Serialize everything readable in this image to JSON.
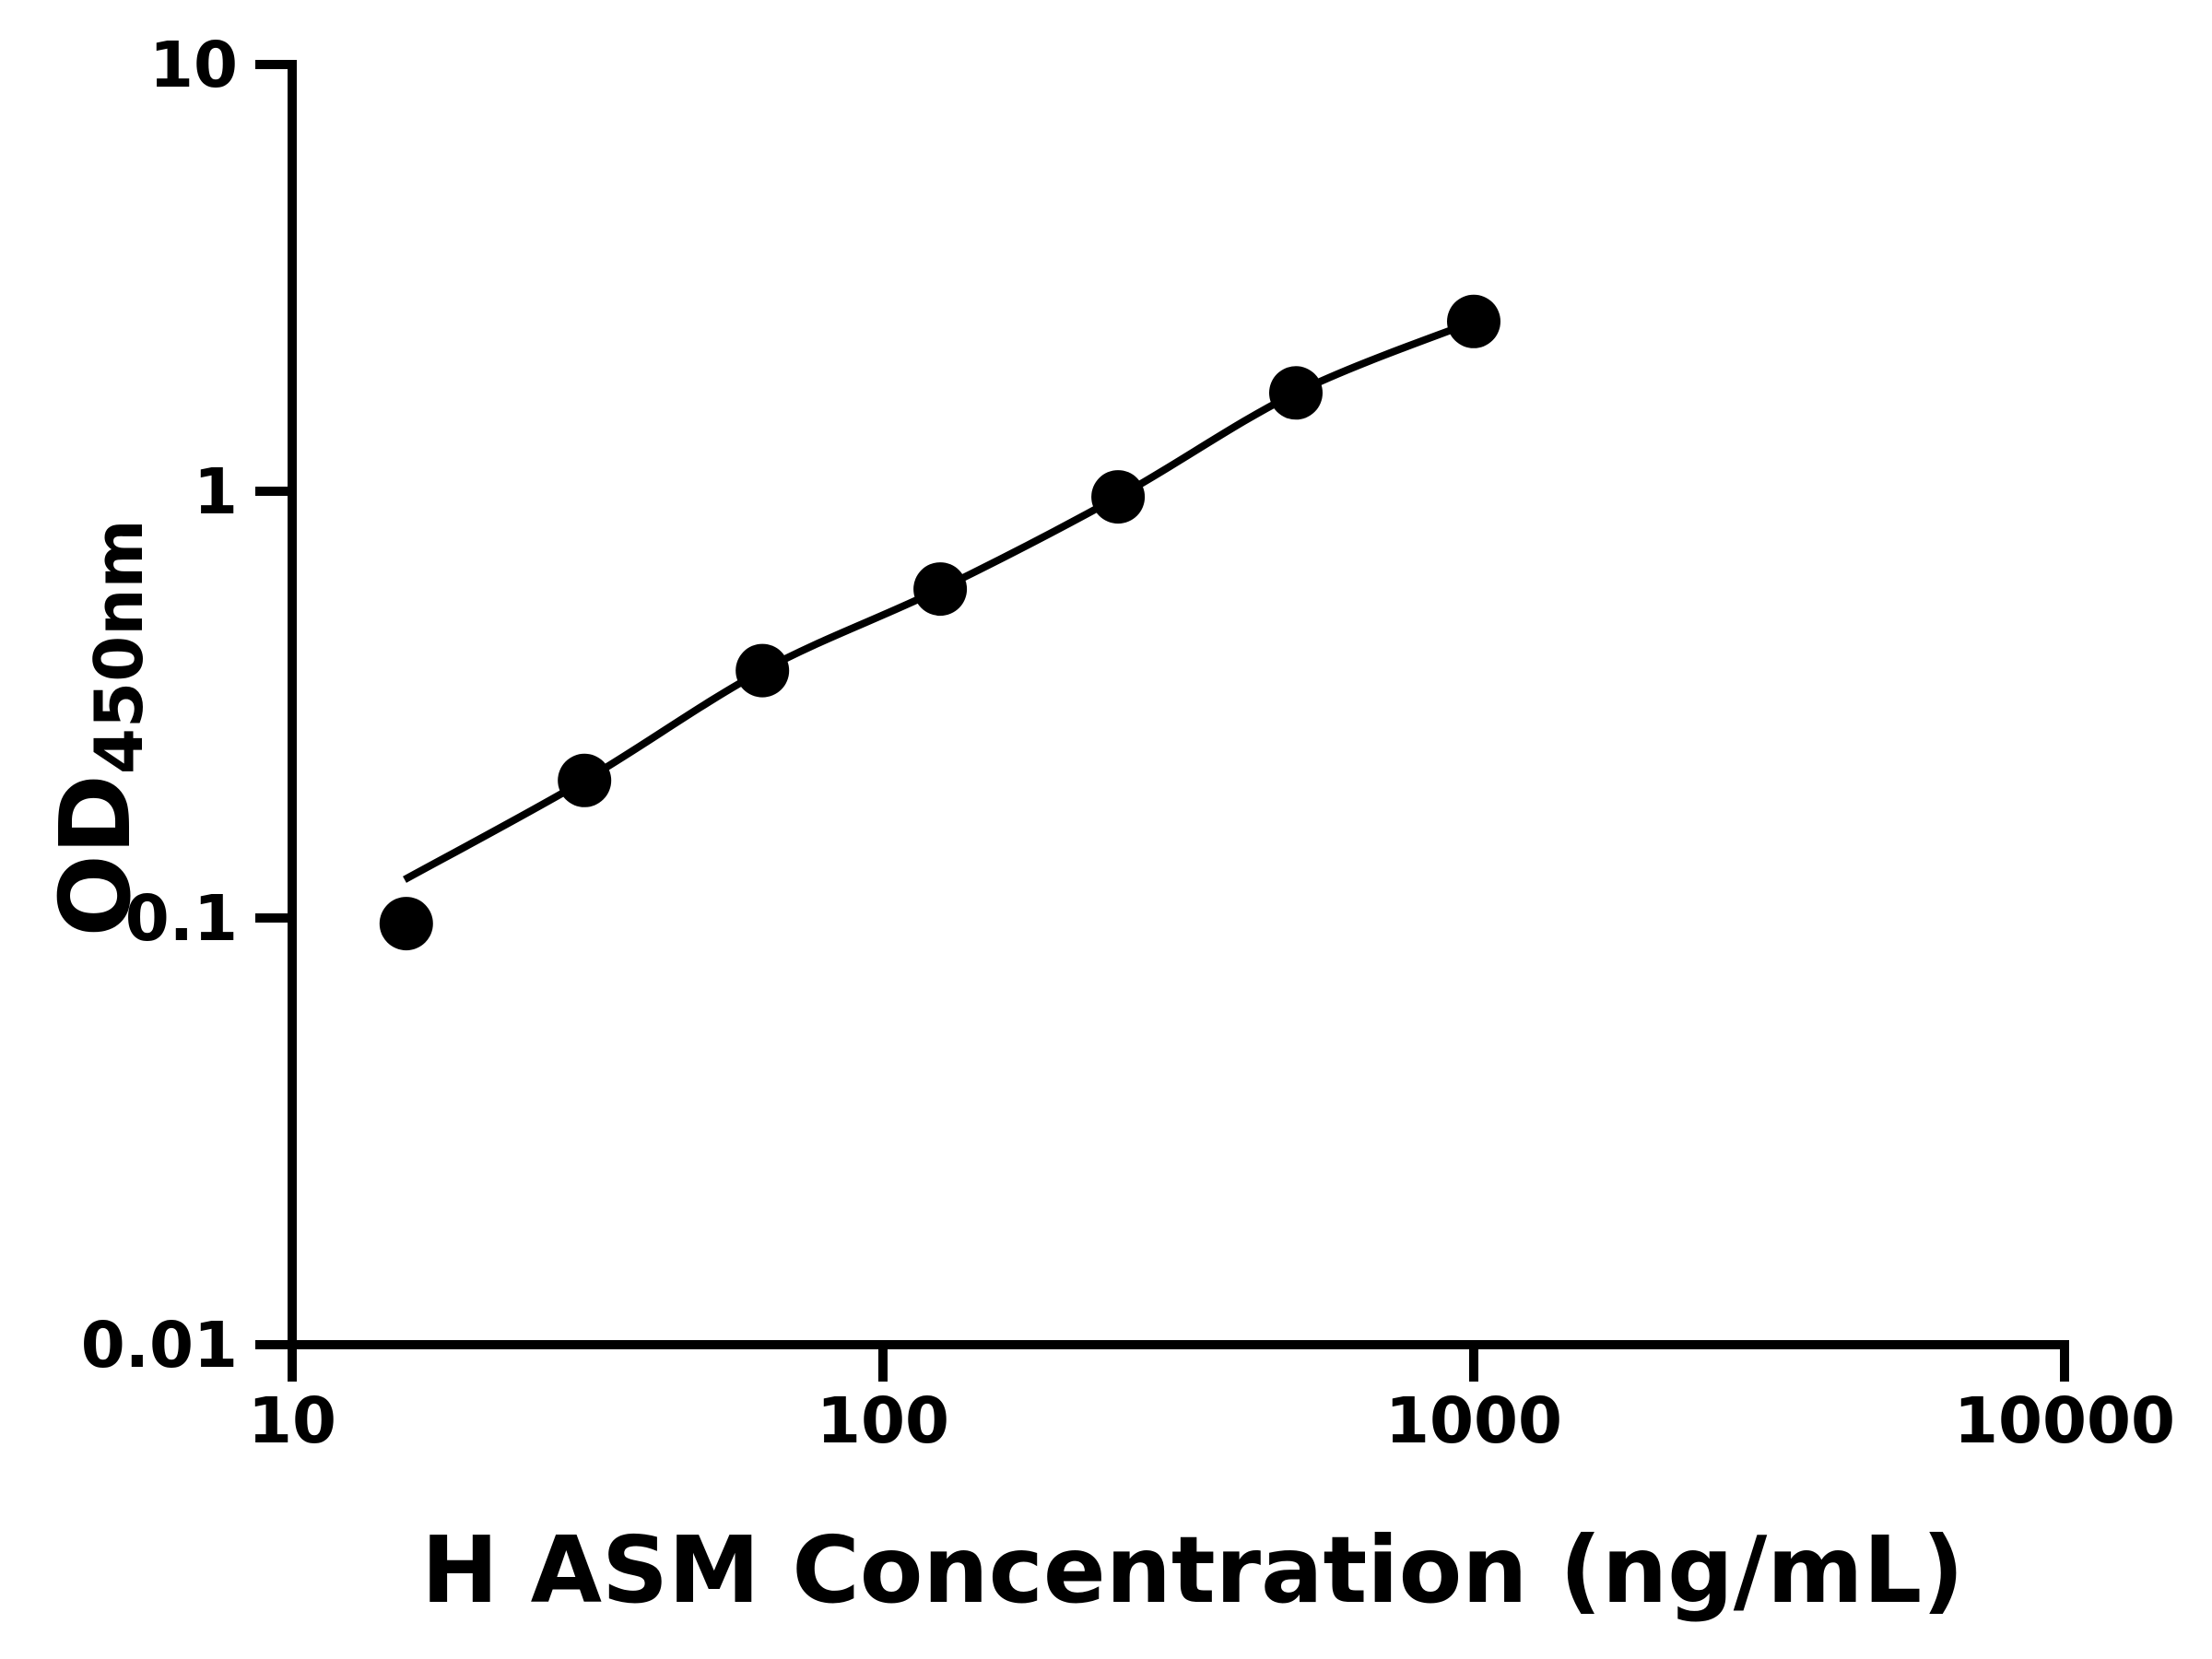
{
  "chart_data": {
    "type": "scatter",
    "title": "",
    "xlabel": "H ASM Concentration (ng/mL)",
    "ylabel": "OD450nm",
    "ylabel_base": "OD",
    "ylabel_subscript": "450nm",
    "x_scale": "log10",
    "y_scale": "log10",
    "xlim": [
      10,
      10000
    ],
    "ylim": [
      0.01,
      10
    ],
    "x_ticks": [
      "10",
      "100",
      "1000",
      "10000"
    ],
    "x_tick_values": [
      10,
      100,
      1000,
      10000
    ],
    "y_ticks": [
      "10",
      "1",
      "0.1",
      "0.01"
    ],
    "y_tick_values": [
      10,
      1,
      0.1,
      0.01
    ],
    "grid": false,
    "legend": false,
    "ink_color": "#000000",
    "background_color": "#ffffff",
    "series": [
      {
        "marker": "circle",
        "x": [
          15.6,
          31.25,
          62.5,
          125,
          250,
          500,
          1000
        ],
        "od": [
          0.097,
          0.21,
          0.38,
          0.59,
          0.97,
          1.7,
          2.5
        ]
      }
    ],
    "fit_curve": {
      "x": [
        15.5,
        31.25,
        62.5,
        125,
        250,
        500,
        1000
      ],
      "od": [
        0.123,
        0.21,
        0.38,
        0.59,
        0.97,
        1.7,
        2.5
      ]
    }
  }
}
